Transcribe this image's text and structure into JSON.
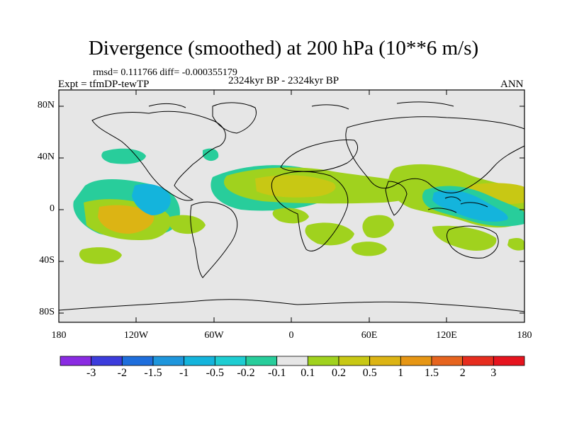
{
  "title": "Divergence (smoothed) at 200 hPa (10**6 m/s)",
  "subtitle": {
    "stats": "rmsd= 0.111766  diff= -0.000355179",
    "expt": "Expt = tfmDP-tewTP",
    "period": "2324kyr BP - 2324kyr BP",
    "season": "ANN"
  },
  "axes": {
    "y_ticks": [
      "80N",
      "40N",
      "0",
      "40S",
      "80S"
    ],
    "x_ticks": [
      "180",
      "120W",
      "60W",
      "0",
      "60E",
      "120E",
      "180"
    ]
  },
  "colorbar": {
    "labels": [
      "-3",
      "-2",
      "-1.5",
      "-1",
      "-0.5",
      "-0.2",
      "-0.1",
      "0.1",
      "0.2",
      "0.5",
      "1",
      "1.5",
      "2",
      "3"
    ],
    "colors": [
      "#8a2be2",
      "#3c3cdc",
      "#1e6edc",
      "#1e96dc",
      "#14b4dc",
      "#1ecdd2",
      "#28cd9b",
      "#e6e6e6",
      "#a0d21e",
      "#c8c814",
      "#dcb414",
      "#e69614",
      "#e6641e",
      "#e62d1e",
      "#e6141e"
    ]
  },
  "colors": {
    "land_background": "#e6e6e6",
    "cyan": "#1ecdd2",
    "teal": "#28cd9b",
    "lime": "#a0d21e",
    "olive": "#c8c814",
    "orange": "#dcb414"
  }
}
